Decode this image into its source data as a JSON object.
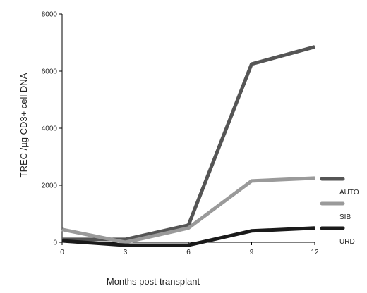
{
  "chart_data": {
    "type": "line",
    "title": "",
    "xlabel": "Months post-transplant",
    "ylabel": "TREC /µg CD3+ cell DNA",
    "x": [
      0,
      3,
      6,
      9,
      12
    ],
    "xlim": [
      0,
      12
    ],
    "ylim": [
      0,
      8000
    ],
    "xticks": [
      "0",
      "3",
      "6",
      "9",
      "12"
    ],
    "yticks": [
      "0",
      "2000",
      "4000",
      "6000",
      "8000"
    ],
    "grid": false,
    "legend_position": "right",
    "series": [
      {
        "name": "AUTO",
        "color": "#555555",
        "values": [
          100,
          100,
          600,
          6250,
          6850
        ]
      },
      {
        "name": "SIB",
        "color": "#9a9a9a",
        "values": [
          450,
          0,
          500,
          2150,
          2250
        ]
      },
      {
        "name": "URD",
        "color": "#1a1a1a",
        "values": [
          50,
          -100,
          -100,
          400,
          500
        ]
      }
    ]
  }
}
